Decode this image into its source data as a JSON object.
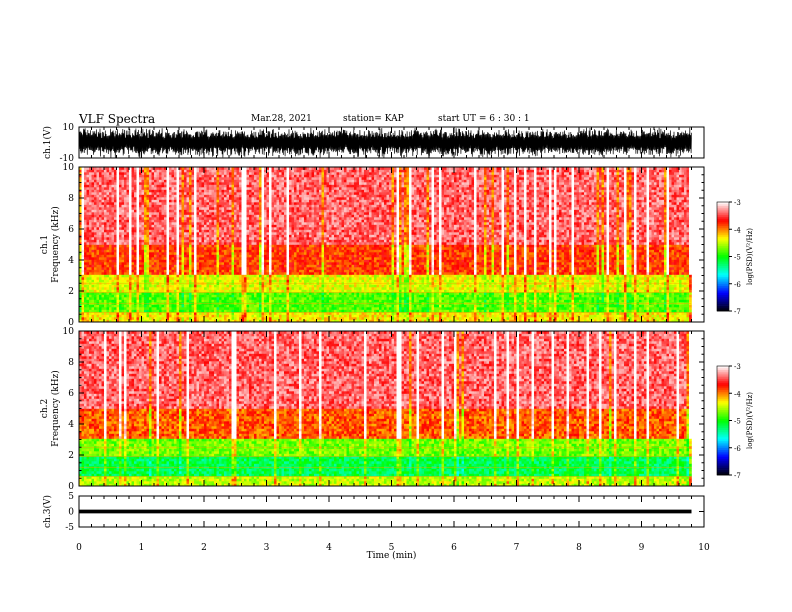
{
  "header": {
    "title": "VLF Spectra",
    "date": "Mar.28, 2021",
    "station": "station= KAP",
    "start": "start  UT =  6 : 30 : 1"
  },
  "chart_data": [
    {
      "type": "line",
      "panel": "ch1-waveform",
      "ylabel": "ch.1(V)",
      "ylim": [
        -10,
        10
      ],
      "ytick_labels": [
        "-10",
        "10"
      ],
      "xlim": [
        0,
        10
      ],
      "color": "#000000",
      "x": [
        0,
        9.8
      ],
      "envelope_min": -10,
      "envelope_max": 10
    },
    {
      "type": "heatmap",
      "panel": "ch1-spectrogram",
      "ylabel_line1": "ch.1",
      "ylabel_line2": "Frequency (kHz)",
      "ylim": [
        0,
        10
      ],
      "ytick_labels": [
        "0",
        "2",
        "4",
        "6",
        "8",
        "10"
      ],
      "xlim": [
        0,
        10
      ],
      "data_xmax": 9.8,
      "bands": [
        {
          "fmin": 0.0,
          "fmax": 0.7,
          "level": -4.3
        },
        {
          "fmin": 0.7,
          "fmax": 2.0,
          "level": -4.8
        },
        {
          "fmin": 2.0,
          "fmax": 3.1,
          "level": -4.4
        },
        {
          "fmin": 3.1,
          "fmax": 5.0,
          "level": -3.8
        },
        {
          "fmin": 5.0,
          "fmax": 10.0,
          "level": -3.4
        }
      ]
    },
    {
      "type": "heatmap",
      "panel": "ch2-spectrogram",
      "ylabel_line1": "ch.2",
      "ylabel_line2": "Frequency (kHz)",
      "ylim": [
        0,
        10
      ],
      "ytick_labels": [
        "0",
        "2",
        "4",
        "6",
        "8",
        "10"
      ],
      "xlim": [
        0,
        10
      ],
      "data_xmax": 9.8,
      "bands": [
        {
          "fmin": 0.0,
          "fmax": 0.7,
          "level": -4.5
        },
        {
          "fmin": 0.7,
          "fmax": 2.0,
          "level": -5.2
        },
        {
          "fmin": 2.0,
          "fmax": 3.0,
          "level": -4.7
        },
        {
          "fmin": 3.0,
          "fmax": 5.0,
          "level": -3.9
        },
        {
          "fmin": 5.0,
          "fmax": 10.0,
          "level": -3.4
        }
      ]
    },
    {
      "type": "line",
      "panel": "ch3-waveform",
      "ylabel": "ch.3(V)",
      "ylim": [
        -5,
        5
      ],
      "ytick_labels": [
        "-5",
        "0",
        "5"
      ],
      "xlim": [
        0,
        10
      ],
      "xlabel": "Time (min)",
      "xtick_labels": [
        "0",
        "1",
        "2",
        "3",
        "4",
        "5",
        "6",
        "7",
        "8",
        "9",
        "10"
      ],
      "color": "#000000",
      "x": [
        0,
        9.8
      ],
      "values": [
        0,
        0
      ],
      "envelope_min": -0.6,
      "envelope_max": 0.6
    }
  ],
  "colorbar": {
    "label": "log(PSD)(V²/Hz)",
    "range": [
      -7,
      -3
    ],
    "tick_labels": [
      "-7",
      "-6",
      "-5",
      "-4",
      "-3"
    ],
    "colors": [
      "#000000",
      "#0000ff",
      "#00ffff",
      "#00ff00",
      "#ffff00",
      "#ff0000",
      "#ffffff"
    ]
  }
}
